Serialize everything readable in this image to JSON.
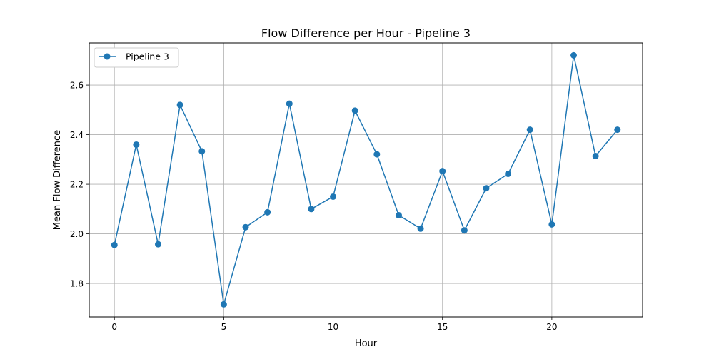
{
  "chart_data": {
    "type": "line",
    "title": "Flow Difference per Hour - Pipeline 3",
    "xlabel": "Hour",
    "ylabel": "Mean Flow Difference",
    "xlim": [
      -1.15,
      24.15
    ],
    "ylim": [
      1.665,
      2.77
    ],
    "xticks": [
      0,
      5,
      10,
      15,
      20
    ],
    "yticks": [
      1.8,
      2.0,
      2.2,
      2.4,
      2.6
    ],
    "grid": true,
    "legend_position": "upper-left",
    "series": [
      {
        "name": "Pipeline 3",
        "color": "#1f77b4",
        "marker": "circle",
        "x": [
          0,
          1,
          2,
          3,
          4,
          5,
          6,
          7,
          8,
          9,
          10,
          11,
          12,
          13,
          14,
          15,
          16,
          17,
          18,
          19,
          20,
          21,
          22,
          23
        ],
        "y": [
          1.955,
          2.36,
          1.958,
          2.52,
          2.333,
          1.716,
          2.027,
          2.087,
          2.525,
          2.1,
          2.15,
          2.497,
          2.321,
          2.075,
          2.021,
          2.253,
          2.014,
          2.184,
          2.242,
          2.42,
          2.038,
          2.72,
          2.314,
          2.42
        ]
      }
    ]
  }
}
